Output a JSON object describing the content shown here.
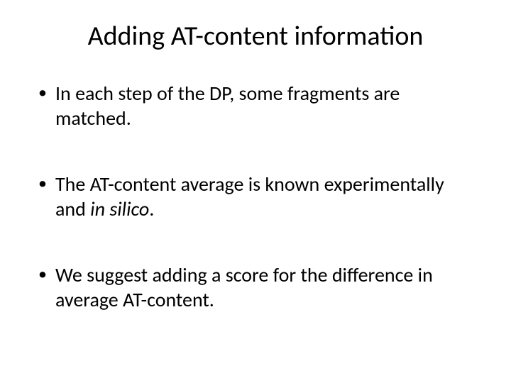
{
  "slide": {
    "title": "Adding AT-content information",
    "title_fontsize": 38,
    "title_color": "#000000",
    "background_color": "#ffffff",
    "bullets": [
      {
        "pre": "In each step of the DP, some fragments are matched.",
        "italic": "",
        "post": ""
      },
      {
        "pre": "The AT-content average is known experimentally and ",
        "italic": "in silico",
        "post": "."
      },
      {
        "pre": "We suggest adding a score for the difference in average AT-content.",
        "italic": "",
        "post": ""
      }
    ],
    "bullet_fontsize": 28,
    "bullet_color": "#000000",
    "bullet_marker": "•"
  }
}
